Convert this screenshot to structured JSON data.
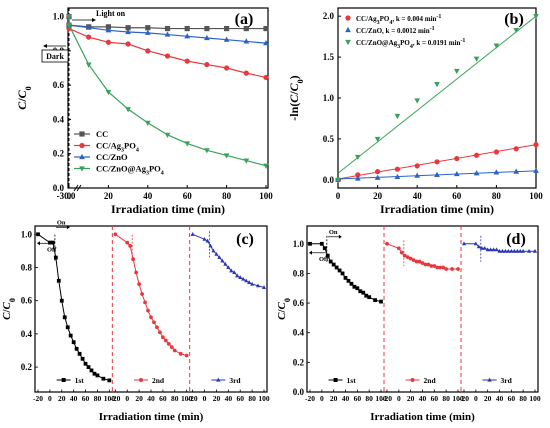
{
  "chart_data": [
    {
      "panel": "(a)",
      "type": "line",
      "xlabel": "Irradiation time (min)",
      "ylabel": "C/C0",
      "xlim": [
        -30,
        100
      ],
      "ylim": [
        0,
        1.05
      ],
      "xticks": [
        "-30.0",
        "0",
        "20",
        "40",
        "60",
        "80",
        "100"
      ],
      "yticks": [
        "0.0",
        "0.2",
        "0.4",
        "0.6",
        "0.8",
        "1.0"
      ],
      "x": [
        -30,
        0,
        10,
        20,
        30,
        40,
        50,
        60,
        70,
        80,
        90,
        100
      ],
      "series": [
        {
          "name": "CC",
          "color": "#555555",
          "marker": "square",
          "values": [
            1.0,
            0.95,
            0.94,
            0.94,
            0.935,
            0.935,
            0.93,
            0.93,
            0.93,
            0.93,
            0.93,
            0.93
          ]
        },
        {
          "name": "CC/Ag3PO4",
          "color": "#e8383d",
          "marker": "circle",
          "values": [
            1.0,
            0.93,
            0.88,
            0.85,
            0.84,
            0.8,
            0.77,
            0.74,
            0.72,
            0.7,
            0.67,
            0.645
          ]
        },
        {
          "name": "CC/ZnO",
          "color": "#2a62c9",
          "marker": "triangle-up",
          "values": [
            1.0,
            0.95,
            0.935,
            0.92,
            0.91,
            0.905,
            0.895,
            0.885,
            0.875,
            0.865,
            0.855,
            0.845
          ]
        },
        {
          "name": "CC/ZnO@Ag3PO4",
          "color": "#3aa35a",
          "marker": "triangle-down",
          "values": [
            1.0,
            0.95,
            0.72,
            0.56,
            0.46,
            0.38,
            0.31,
            0.26,
            0.22,
            0.19,
            0.16,
            0.13
          ]
        }
      ],
      "annotations": [
        "Light on",
        "Dark"
      ],
      "legend_position": "bottom-left"
    },
    {
      "panel": "(b)",
      "type": "scatter",
      "xlabel": "Irradiation time (min)",
      "ylabel": "-ln(C/C0)",
      "xlim": [
        0,
        100
      ],
      "ylim": [
        -0.1,
        2.1
      ],
      "xticks": [
        "0",
        "20",
        "40",
        "60",
        "80",
        "100"
      ],
      "yticks": [
        "0.0",
        "0.5",
        "1.0",
        "1.5",
        "2.0"
      ],
      "x": [
        0,
        10,
        20,
        30,
        40,
        50,
        60,
        70,
        80,
        90,
        100
      ],
      "series": [
        {
          "name": "CC/Ag3PO4, k = 0.004 min-1",
          "color": "#e8383d",
          "marker": "circle",
          "values": [
            0.0,
            0.06,
            0.1,
            0.13,
            0.17,
            0.22,
            0.26,
            0.3,
            0.34,
            0.38,
            0.43
          ]
        },
        {
          "name": "CC/ZnO, k = 0.0012 min-1",
          "color": "#2a62c9",
          "marker": "triangle-up",
          "values": [
            0.0,
            0.015,
            0.025,
            0.035,
            0.05,
            0.06,
            0.07,
            0.08,
            0.09,
            0.1,
            0.11
          ]
        },
        {
          "name": "CC/ZnO@Ag3PO4, k = 0.0191 min-1",
          "color": "#3aa35a",
          "marker": "triangle-down",
          "values": [
            0.0,
            0.28,
            0.5,
            0.78,
            0.97,
            1.17,
            1.33,
            1.48,
            1.64,
            1.83,
            2.0
          ]
        }
      ],
      "legend_position": "top-left"
    },
    {
      "panel": "(c)",
      "type": "line",
      "xlabel": "Irradiation time (min)",
      "ylabel": "C/C0",
      "ylim": [
        0.05,
        1.05
      ],
      "yticks": [
        "0.2",
        "0.4",
        "0.6",
        "0.8",
        "1.0"
      ],
      "xticks": [
        "-20",
        "0",
        "20",
        "40",
        "60",
        "80",
        "100"
      ],
      "cycles": [
        {
          "name": "1st",
          "color": "#000000",
          "marker": "square",
          "x": [
            -20,
            0,
            5,
            10,
            15,
            20,
            25,
            30,
            35,
            40,
            45,
            50,
            55,
            60,
            65,
            70,
            75,
            80,
            90,
            100
          ],
          "values": [
            1.0,
            0.95,
            0.95,
            0.86,
            0.72,
            0.6,
            0.5,
            0.44,
            0.39,
            0.35,
            0.31,
            0.28,
            0.25,
            0.22,
            0.2,
            0.18,
            0.16,
            0.15,
            0.13,
            0.12
          ]
        },
        {
          "name": "2nd",
          "color": "#e8383d",
          "marker": "circle",
          "x": [
            -20,
            0,
            5,
            10,
            15,
            20,
            25,
            30,
            35,
            40,
            45,
            50,
            55,
            60,
            65,
            70,
            75,
            80,
            90,
            100
          ],
          "values": [
            1.0,
            0.95,
            0.93,
            0.85,
            0.77,
            0.7,
            0.64,
            0.59,
            0.54,
            0.5,
            0.47,
            0.44,
            0.41,
            0.38,
            0.36,
            0.34,
            0.32,
            0.3,
            0.28,
            0.27
          ]
        },
        {
          "name": "3rd",
          "color": "#2a37b5",
          "marker": "triangle-up",
          "x": [
            -20,
            0,
            5,
            10,
            15,
            20,
            25,
            30,
            35,
            40,
            45,
            50,
            55,
            60,
            65,
            70,
            75,
            80,
            90,
            100
          ],
          "values": [
            1.0,
            0.97,
            0.96,
            0.93,
            0.9,
            0.88,
            0.86,
            0.84,
            0.82,
            0.8,
            0.78,
            0.77,
            0.75,
            0.74,
            0.73,
            0.72,
            0.71,
            0.7,
            0.69,
            0.68
          ]
        }
      ],
      "annotations": [
        "On",
        "Off"
      ]
    },
    {
      "panel": "(d)",
      "type": "line",
      "xlabel": "Irradiation time (min)",
      "ylabel": "C/C0",
      "ylim": [
        0.0,
        1.12
      ],
      "yticks": [
        "0.0",
        "0.2",
        "0.4",
        "0.6",
        "0.8",
        "1.0"
      ],
      "xticks": [
        "-20",
        "0",
        "20",
        "40",
        "60",
        "80",
        "100"
      ],
      "cycles": [
        {
          "name": "1st",
          "color": "#000000",
          "marker": "square",
          "x": [
            -20,
            0,
            5,
            10,
            15,
            20,
            25,
            30,
            35,
            40,
            45,
            50,
            55,
            60,
            65,
            70,
            75,
            80,
            90,
            100
          ],
          "values": [
            1.0,
            1.0,
            0.97,
            0.92,
            0.88,
            0.86,
            0.84,
            0.82,
            0.8,
            0.77,
            0.75,
            0.73,
            0.71,
            0.7,
            0.68,
            0.67,
            0.65,
            0.64,
            0.62,
            0.61
          ]
        },
        {
          "name": "2nd",
          "color": "#e8383d",
          "marker": "circle",
          "x": [
            -20,
            0,
            5,
            10,
            15,
            20,
            25,
            30,
            35,
            40,
            45,
            50,
            55,
            60,
            65,
            70,
            75,
            80,
            90,
            100
          ],
          "values": [
            1.0,
            0.97,
            0.94,
            0.92,
            0.91,
            0.9,
            0.89,
            0.88,
            0.88,
            0.87,
            0.86,
            0.86,
            0.85,
            0.85,
            0.84,
            0.84,
            0.84,
            0.83,
            0.83,
            0.83
          ]
        },
        {
          "name": "3rd",
          "color": "#2a37b5",
          "marker": "triangle-up",
          "x": [
            -20,
            0,
            5,
            10,
            15,
            20,
            25,
            30,
            35,
            40,
            45,
            50,
            55,
            60,
            65,
            70,
            75,
            80,
            90,
            100
          ],
          "values": [
            1.0,
            1.0,
            0.98,
            0.97,
            0.97,
            0.96,
            0.96,
            0.96,
            0.96,
            0.95,
            0.95,
            0.95,
            0.95,
            0.95,
            0.95,
            0.95,
            0.95,
            0.95,
            0.95,
            0.95
          ]
        }
      ],
      "annotations": [
        "On",
        "Off"
      ]
    }
  ]
}
